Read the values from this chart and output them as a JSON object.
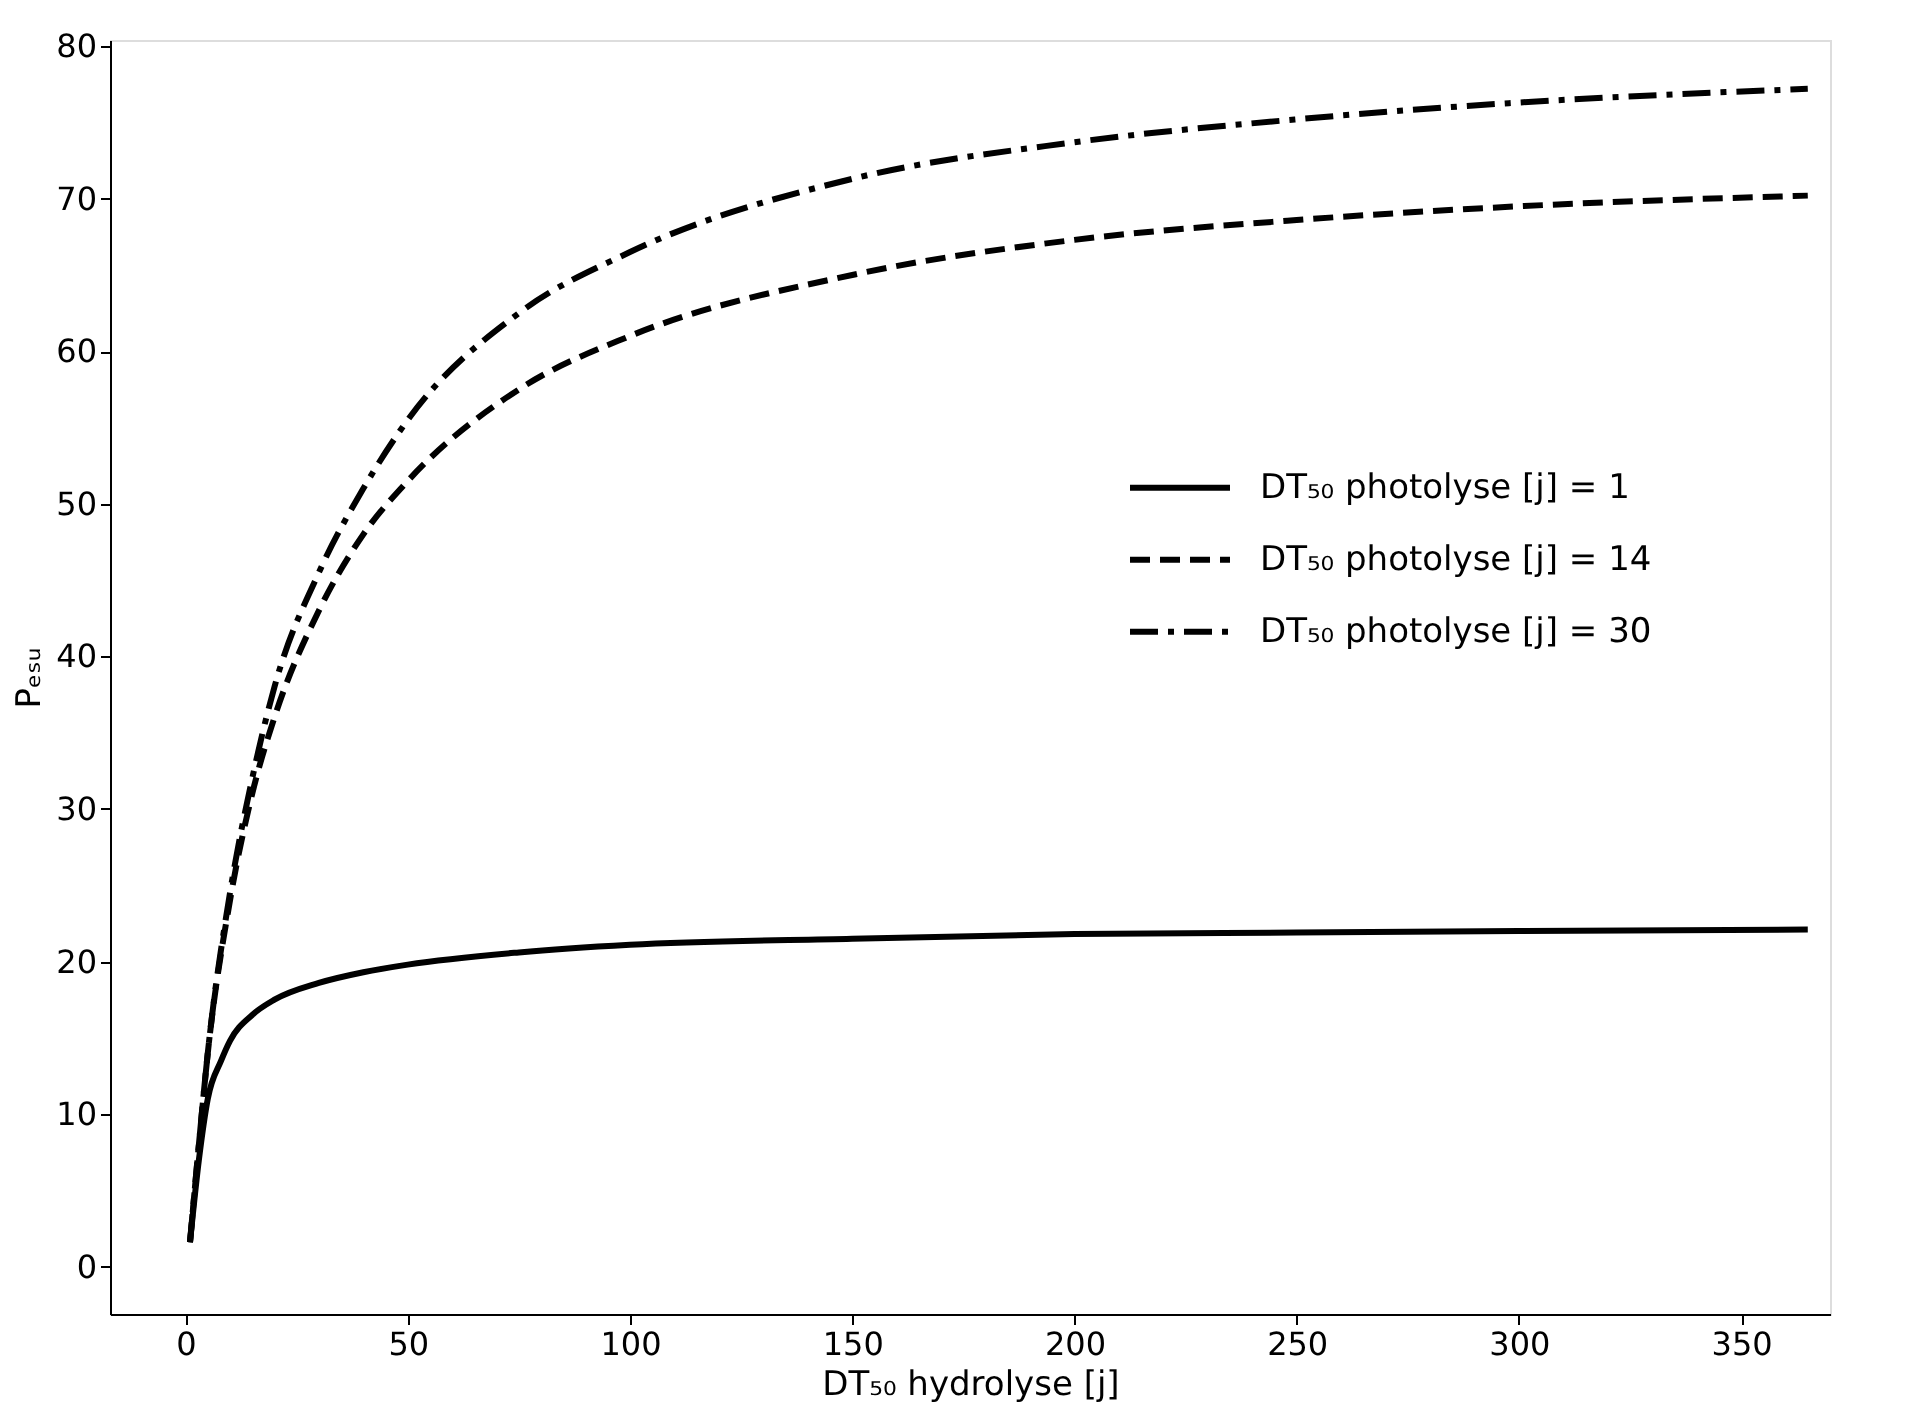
{
  "chart_data": {
    "type": "line",
    "xlabel": "DT₅₀ hydrolyse [j]",
    "ylabel": "Pₑₛᵤ",
    "xlim": [
      -17,
      370
    ],
    "ylim": [
      -3.1,
      80.4
    ],
    "xticks": [
      0,
      50,
      100,
      150,
      200,
      250,
      300,
      350
    ],
    "yticks": [
      0,
      10,
      20,
      30,
      40,
      50,
      60,
      70,
      80
    ],
    "grid": false,
    "legend": "right",
    "marker": "none",
    "series": [
      {
        "name": "DT₅₀ photolyse [j] = 1",
        "color": "#000000",
        "line_style": "solid",
        "x": [
          1,
          3,
          5,
          8,
          10,
          15,
          20,
          30,
          40,
          50,
          75,
          100,
          150,
          200,
          250,
          300,
          365
        ],
        "values": [
          1.6,
          7,
          11,
          13.5,
          14.8,
          16.5,
          17.5,
          18.6,
          19.3,
          19.8,
          20.6,
          21.1,
          21.5,
          21.8,
          21.9,
          22.0,
          22.1
        ]
      },
      {
        "name": "DT₅₀ photolyse [j] = 14",
        "color": "#000000",
        "line_style": "dashed",
        "x": [
          1,
          3,
          5,
          10,
          15,
          20,
          30,
          40,
          50,
          75,
          100,
          150,
          200,
          250,
          300,
          365
        ],
        "values": [
          1.6,
          8,
          14,
          24,
          31,
          36,
          43,
          48,
          51.5,
          57.5,
          61,
          65,
          67.3,
          68.6,
          69.5,
          70.2
        ]
      },
      {
        "name": "DT₅₀ photolyse [j] = 30",
        "color": "#000000",
        "line_style": "dashdot",
        "x": [
          1,
          3,
          5,
          10,
          15,
          20,
          30,
          40,
          50,
          75,
          100,
          150,
          200,
          250,
          300,
          365
        ],
        "values": [
          1.6,
          8,
          14,
          24.5,
          32,
          38,
          45.5,
          51,
          55.5,
          62.5,
          66.5,
          71.3,
          73.7,
          75.2,
          76.3,
          77.2
        ]
      }
    ]
  }
}
